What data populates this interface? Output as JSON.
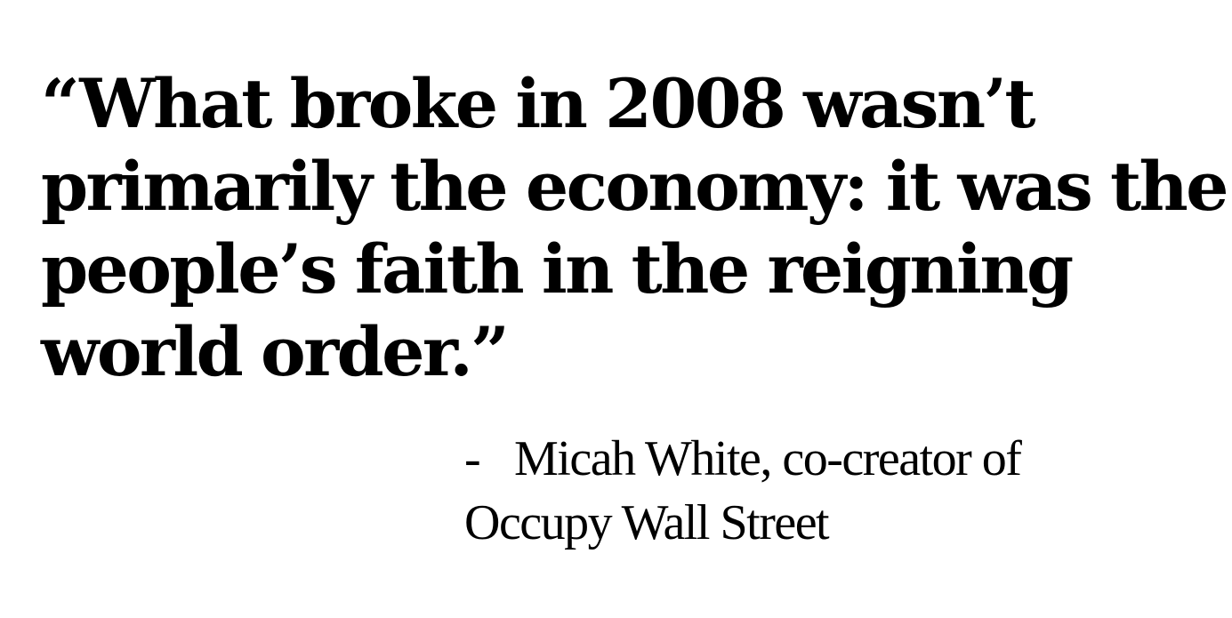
{
  "quote": {
    "lines": [
      "“What broke in 2008 wasn’t",
      "primarily the economy: it was the",
      "people’s faith in the reigning",
      "world order.”"
    ]
  },
  "attribution": {
    "dash": "-",
    "line1": "Micah White, co-creator of",
    "line2": "Occupy Wall Street"
  },
  "colors": {
    "background": "#ffffff",
    "text": "#000000"
  }
}
